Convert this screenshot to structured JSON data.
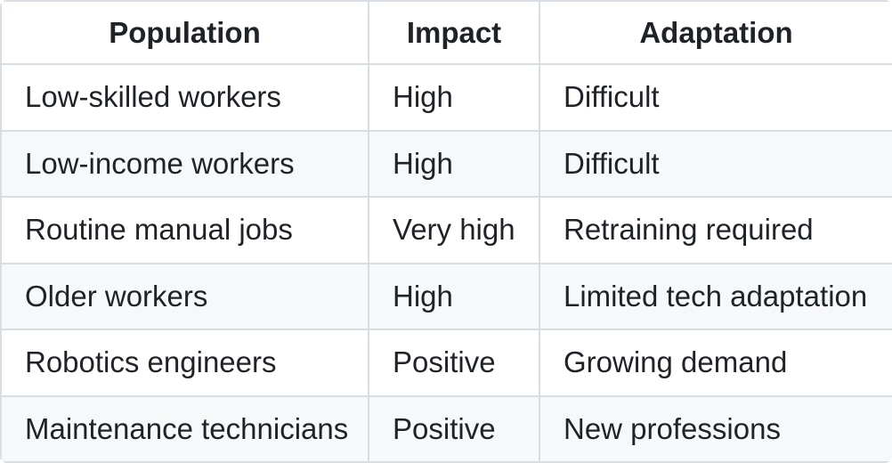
{
  "chart_data": {
    "type": "table",
    "columns": [
      "Population",
      "Impact",
      "Adaptation"
    ],
    "rows": [
      [
        "Low-skilled workers",
        "High",
        "Difficult"
      ],
      [
        "Low-income workers",
        "High",
        "Difficult"
      ],
      [
        "Routine manual jobs",
        "Very high",
        "Retraining required"
      ],
      [
        "Older workers",
        "High",
        "Limited tech adaptation"
      ],
      [
        "Robotics engineers",
        "Positive",
        "Growing demand"
      ],
      [
        "Maintenance technicians",
        "Positive",
        "New professions"
      ]
    ],
    "layout_hints": {
      "header_align": "center",
      "cell_align": "left",
      "zebra_striping": true
    },
    "colors": {
      "text": "#1f2328",
      "border": "#d8dde3",
      "row_bg": "#ffffff",
      "row_alt_bg": "#f6f8fa"
    }
  }
}
